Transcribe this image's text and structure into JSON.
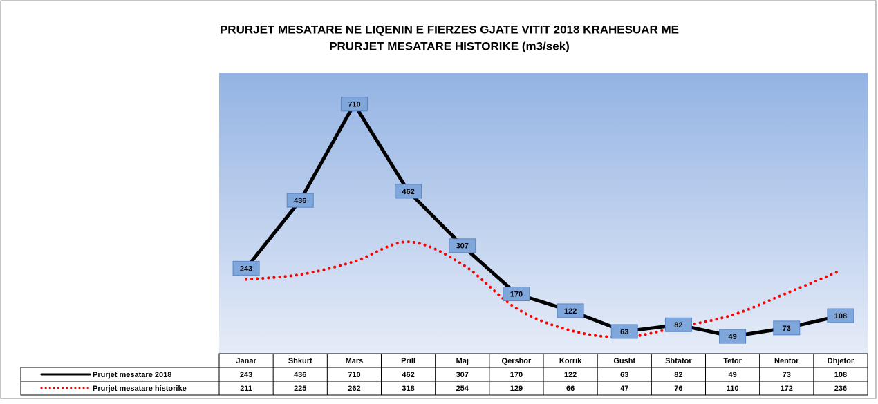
{
  "chart_data": {
    "type": "line",
    "title": "PRURJET MESATARE NE LIQENIN E FIERZES GJATE VITIT 2018 KRAHESUAR ME",
    "subtitle": "PRURJET MESATARE HISTORIKE (m3/sek)",
    "categories": [
      "Janar",
      "Shkurt",
      "Mars",
      "Prill",
      "Maj",
      "Qershor",
      "Korrik",
      "Gusht",
      "Shtator",
      "Tetor",
      "Nentor",
      "Dhjetor"
    ],
    "series": [
      {
        "name": "Prurjet mesatare 2018",
        "color": "#000000",
        "values": [
          243,
          436,
          710,
          462,
          307,
          170,
          122,
          63,
          82,
          49,
          73,
          108
        ]
      },
      {
        "name": "Prurjet mesatare historike",
        "color": "#ff0000",
        "values": [
          211,
          225,
          262,
          318,
          254,
          129,
          66,
          47,
          76,
          110,
          172,
          236
        ]
      }
    ],
    "ylim": [
      0,
      800
    ]
  }
}
